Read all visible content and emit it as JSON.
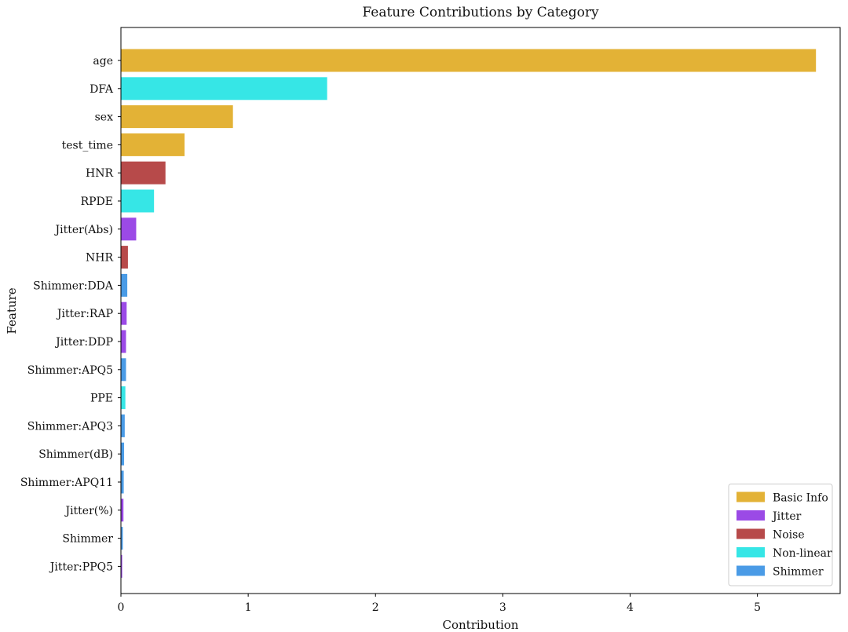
{
  "chart_data": {
    "type": "bar",
    "orientation": "horizontal",
    "title": "Feature Contributions by Category",
    "xlabel": "Contribution",
    "ylabel": "Feature",
    "xlim": [
      0,
      5.65
    ],
    "xticks": [
      0,
      1,
      2,
      3,
      4,
      5
    ],
    "grid": false,
    "legend_position": "bottom-right",
    "categories_colors": {
      "Basic Info": "#E3B236",
      "Jitter": "#9B4AE6",
      "Noise": "#B74A4A",
      "Non-linear": "#36E6E6",
      "Shimmer": "#4A9BE6"
    },
    "legend": [
      "Basic Info",
      "Jitter",
      "Noise",
      "Non-linear",
      "Shimmer"
    ],
    "bars": [
      {
        "feature": "age",
        "value": 5.46,
        "category": "Basic Info"
      },
      {
        "feature": "DFA",
        "value": 1.62,
        "category": "Non-linear"
      },
      {
        "feature": "sex",
        "value": 0.88,
        "category": "Basic Info"
      },
      {
        "feature": "test_time",
        "value": 0.5,
        "category": "Basic Info"
      },
      {
        "feature": "HNR",
        "value": 0.35,
        "category": "Noise"
      },
      {
        "feature": "RPDE",
        "value": 0.26,
        "category": "Non-linear"
      },
      {
        "feature": "Jitter(Abs)",
        "value": 0.12,
        "category": "Jitter"
      },
      {
        "feature": "NHR",
        "value": 0.055,
        "category": "Noise"
      },
      {
        "feature": "Shimmer:DDA",
        "value": 0.05,
        "category": "Shimmer"
      },
      {
        "feature": "Jitter:RAP",
        "value": 0.045,
        "category": "Jitter"
      },
      {
        "feature": "Jitter:DDP",
        "value": 0.04,
        "category": "Jitter"
      },
      {
        "feature": "Shimmer:APQ5",
        "value": 0.04,
        "category": "Shimmer"
      },
      {
        "feature": "PPE",
        "value": 0.035,
        "category": "Non-linear"
      },
      {
        "feature": "Shimmer:APQ3",
        "value": 0.03,
        "category": "Shimmer"
      },
      {
        "feature": "Shimmer(dB)",
        "value": 0.025,
        "category": "Shimmer"
      },
      {
        "feature": "Shimmer:APQ11",
        "value": 0.022,
        "category": "Shimmer"
      },
      {
        "feature": "Jitter(%)",
        "value": 0.02,
        "category": "Jitter"
      },
      {
        "feature": "Shimmer",
        "value": 0.015,
        "category": "Shimmer"
      },
      {
        "feature": "Jitter:PPQ5",
        "value": 0.01,
        "category": "Jitter"
      }
    ]
  }
}
